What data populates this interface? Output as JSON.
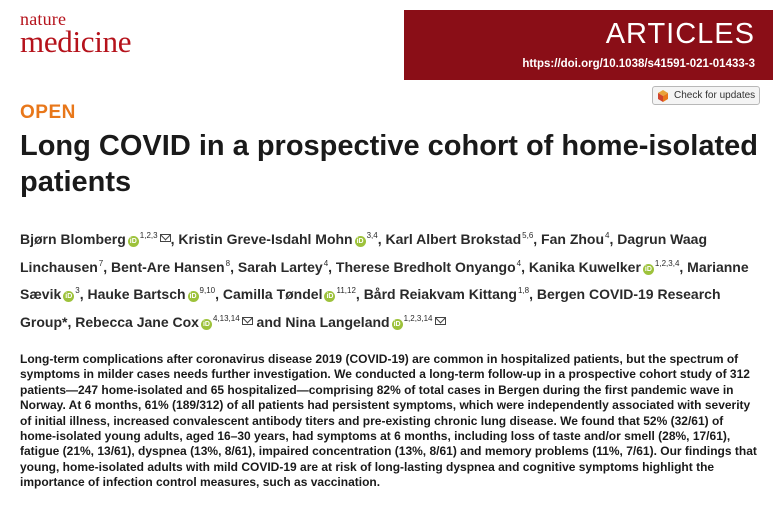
{
  "journal": {
    "name_line1": "nature",
    "name_line2": "medicine"
  },
  "banner": {
    "section": "ARTICLES",
    "doi": "https://doi.org/10.1038/s41591-021-01433-3"
  },
  "check_updates": {
    "label": "Check for updates"
  },
  "open_access": "OPEN",
  "title": "Long COVID in a prospective cohort of home-isolated patients",
  "authors": [
    {
      "name": "Bjørn Blomberg",
      "aff": "1,2,3",
      "orcid": true,
      "mail": true,
      "sep": ", "
    },
    {
      "name": "Kristin Greve-Isdahl Mohn",
      "aff": "3,4",
      "orcid": true,
      "mail": false,
      "sep": ", "
    },
    {
      "name": "Karl Albert Brokstad",
      "aff": "5,6",
      "orcid": false,
      "mail": false,
      "sep": ", "
    },
    {
      "name": "Fan Zhou",
      "aff": "4",
      "orcid": false,
      "mail": false,
      "sep": ", "
    },
    {
      "name": "Dagrun Waag Linchausen",
      "aff": "7",
      "orcid": false,
      "mail": false,
      "sep": ", "
    },
    {
      "name": "Bent-Are Hansen",
      "aff": "8",
      "orcid": false,
      "mail": false,
      "sep": ", "
    },
    {
      "name": "Sarah Lartey",
      "aff": "4",
      "orcid": false,
      "mail": false,
      "sep": ", "
    },
    {
      "name": "Therese Bredholt Onyango",
      "aff": "4",
      "orcid": false,
      "mail": false,
      "sep": ", "
    },
    {
      "name": "Kanika Kuwelker",
      "aff": "1,2,3,4",
      "orcid": true,
      "mail": false,
      "sep": ", "
    },
    {
      "name": "Marianne Sævik",
      "aff": "3",
      "orcid": true,
      "mail": false,
      "sep": ", "
    },
    {
      "name": "Hauke Bartsch",
      "aff": "9,10",
      "orcid": true,
      "mail": false,
      "sep": ", "
    },
    {
      "name": "Camilla Tøndel",
      "aff": "11,12",
      "orcid": true,
      "mail": false,
      "sep": ", "
    },
    {
      "name": "Bård Reiakvam Kittang",
      "aff": "1,8",
      "orcid": false,
      "mail": false,
      "sep": ", "
    },
    {
      "name": "Bergen COVID-19 Research Group*",
      "aff": "",
      "orcid": false,
      "mail": false,
      "sep": ", "
    },
    {
      "name": "Rebecca Jane Cox",
      "aff": "4,13,14",
      "orcid": true,
      "mail": true,
      "sep": " and "
    },
    {
      "name": "Nina Langeland",
      "aff": "1,2,3,14",
      "orcid": true,
      "mail": true,
      "sep": ""
    }
  ],
  "abstract": "Long-term complications after coronavirus disease 2019 (COVID-19) are common in hospitalized patients, but the spectrum of symptoms in milder cases needs further investigation. We conducted a long-term follow-up in a prospective cohort study of 312 patients—247 home-isolated and 65 hospitalized—comprising 82% of total cases in Bergen during the first pandemic wave in Norway. At 6 months, 61% (189/312) of all patients had persistent symptoms, which were independently associated with severity of initial illness, increased convalescent antibody titers and pre-existing chronic lung disease. We found that 52% (32/61) of home-isolated young adults, aged 16–30 years, had symptoms at 6 months, including loss of taste and/or smell (28%, 17/61), fatigue (21%, 13/61), dyspnea (13%, 8/61), impaired concentration (13%, 8/61) and memory problems (11%, 7/61). Our findings that young, home-isolated adults with mild COVID-19 are at risk of long-lasting dyspnea and cognitive symptoms highlight the importance of infection control measures, such as vaccination."
}
